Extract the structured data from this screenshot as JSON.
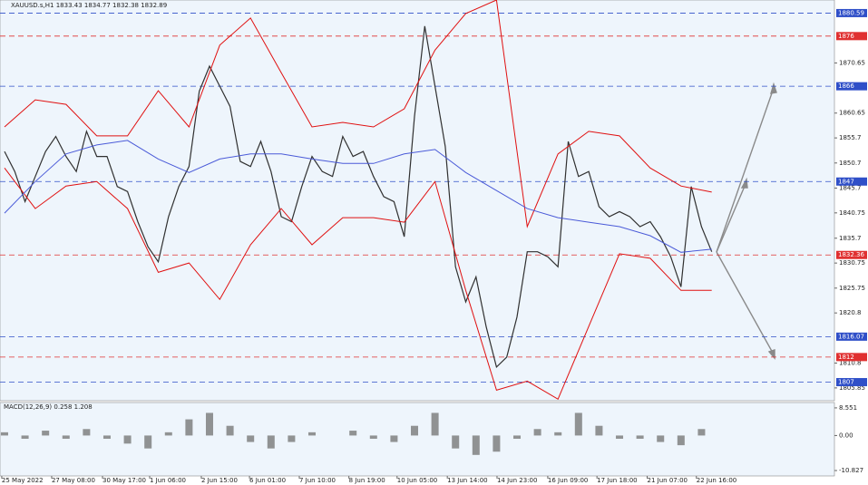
{
  "chart_data": [
    {
      "type": "line",
      "title": "XAUUSD.s,H1  1833.43 1834.77 1832.38 1832.89",
      "xlim": [
        -0.44,
        80.97
      ],
      "ylim": [
        1803.3,
        1883.2
      ],
      "yticks": [
        1870.65,
        1860.65,
        1855.7,
        1850.7,
        1845.7,
        1840.75,
        1835.7,
        1830.75,
        1825.75,
        1820.8,
        1810.8,
        1805.85
      ],
      "levels": [
        {
          "value": 1880.59,
          "color": "#2f4fc8"
        },
        {
          "value": 1876.0,
          "color": "#e03030"
        },
        {
          "value": 1866.0,
          "color": "#2f4fc8"
        },
        {
          "value": 1847.0,
          "color": "#2f4fc8"
        },
        {
          "value": 1832.36,
          "color": "#e03030"
        },
        {
          "value": 1816.07,
          "color": "#2f4fc8"
        },
        {
          "value": 1812.0,
          "color": "#e03030"
        },
        {
          "value": 1807.0,
          "color": "#2f4fc8"
        }
      ],
      "series": [
        {
          "color": "#303030",
          "x": [
            0,
            1,
            2,
            3,
            4,
            5,
            6,
            7,
            8,
            9,
            10,
            11,
            12,
            13,
            14,
            15,
            16,
            17,
            18,
            19,
            20,
            21,
            22,
            23,
            24,
            25,
            26,
            27,
            28,
            29,
            30,
            31,
            32,
            33,
            34,
            35,
            36,
            37,
            38,
            39,
            40,
            41,
            42,
            43,
            44,
            45,
            46,
            47,
            48,
            49,
            50,
            51,
            52,
            53,
            54,
            55,
            56,
            57,
            58,
            59,
            60,
            61,
            62,
            63,
            64,
            65,
            66,
            67,
            68,
            69
          ],
          "values": [
            1853,
            1849,
            1843,
            1848,
            1853,
            1856,
            1852,
            1849,
            1857,
            1852,
            1852,
            1846,
            1845,
            1839,
            1834,
            1831,
            1840,
            1846,
            1850,
            1865,
            1870,
            1866,
            1862,
            1851,
            1850,
            1855,
            1849,
            1840,
            1839,
            1846,
            1852,
            1849,
            1848,
            1856,
            1852,
            1853,
            1848,
            1844,
            1843,
            1836,
            1860,
            1878,
            1866,
            1854,
            1830,
            1823,
            1828,
            1818,
            1810,
            1812,
            1820,
            1833,
            1833,
            1832,
            1830,
            1855,
            1848,
            1849,
            1842,
            1840,
            1841,
            1840,
            1838,
            1839,
            1836,
            1832,
            1826,
            1846,
            1838,
            1833
          ]
        },
        {
          "color": "#e01010",
          "x": [
            0,
            3,
            6,
            9,
            12,
            15,
            18,
            21,
            24,
            27,
            30,
            33,
            36,
            39,
            42,
            45,
            48,
            51,
            54,
            57,
            60,
            63,
            66,
            69
          ],
          "values": [
            1857.9,
            1863.3,
            1862.4,
            1856.1,
            1856.1,
            1865.1,
            1857.9,
            1874.2,
            1879.6,
            1868.7,
            1857.9,
            1858.8,
            1857.9,
            1861.5,
            1873.2,
            1880.5,
            1883.2,
            1838.0,
            1852.5,
            1857.0,
            1856.1,
            1849.7,
            1846.1,
            1844.9
          ]
        },
        {
          "color": "#e01010",
          "x": [
            0,
            3,
            6,
            9,
            12,
            15,
            18,
            21,
            24,
            27,
            30,
            33,
            36,
            39,
            42,
            45,
            48,
            51,
            54,
            57,
            60,
            63,
            66,
            69
          ],
          "values": [
            1849.7,
            1841.6,
            1846.1,
            1847.0,
            1841.6,
            1828.9,
            1830.75,
            1823.5,
            1834.4,
            1841.6,
            1834.4,
            1839.8,
            1839.8,
            1838.9,
            1847.0,
            1825.3,
            1805.4,
            1807.2,
            1803.6,
            1818.1,
            1832.6,
            1831.7,
            1825.3,
            1825.3
          ]
        },
        {
          "color": "#4a5ad8",
          "x": [
            0,
            3,
            6,
            9,
            12,
            15,
            18,
            21,
            24,
            27,
            30,
            33,
            36,
            39,
            42,
            45,
            48,
            51,
            54,
            57,
            60,
            63,
            66,
            69
          ],
          "values": [
            1840.7,
            1847.0,
            1852.5,
            1854.3,
            1855.2,
            1851.5,
            1848.8,
            1851.5,
            1852.5,
            1852.5,
            1851.5,
            1850.6,
            1850.6,
            1852.5,
            1853.4,
            1848.8,
            1845.2,
            1841.6,
            1839.8,
            1838.9,
            1838.0,
            1836.2,
            1832.9,
            1833.5
          ]
        }
      ]
    },
    {
      "type": "bar",
      "title": "MACD(12,26,9) 0.258 1.208",
      "color": "#707070",
      "xlim": [
        -0.44,
        80.97
      ],
      "ylim": [
        -12.5,
        10.21
      ],
      "yticks": [
        8.551,
        {
          "value": 0,
          "label": "0.00"
        },
        -10.827
      ],
      "x": [
        0,
        2,
        4,
        6,
        8,
        10,
        12,
        14,
        16,
        18,
        20,
        22,
        24,
        26,
        28,
        30,
        32,
        34,
        36,
        38,
        40,
        42,
        44,
        46,
        48,
        50,
        52,
        54,
        56,
        58,
        60,
        62,
        64,
        66,
        68
      ],
      "values": [
        1,
        -1,
        1.5,
        -1,
        2,
        -1,
        -2.5,
        -4,
        1,
        5,
        7,
        3,
        -2,
        -4,
        -2,
        1,
        0,
        1.5,
        -1,
        -2,
        3,
        7,
        -4,
        -6,
        -5,
        -1,
        2,
        1,
        7,
        3,
        -1,
        -1,
        -2,
        -3,
        2
      ],
      "xticks": [
        {
          "value": -0.27,
          "label": "25 May 2022"
        },
        {
          "value": 4.6,
          "label": "27 May 08:00"
        },
        {
          "value": 9.56,
          "label": "30 May 17:00"
        },
        {
          "value": 14.16,
          "label": "1 Jun 06:00"
        },
        {
          "value": 19.2,
          "label": "2 Jun 15:00"
        },
        {
          "value": 23.9,
          "label": "6 Jun 01:00"
        },
        {
          "value": 28.76,
          "label": "7 Jun 10:00"
        },
        {
          "value": 33.6,
          "label": "8 Jun 19:00"
        },
        {
          "value": 38.3,
          "label": "10 Jun 05:00"
        },
        {
          "value": 43.2,
          "label": "13 Jun 14:00"
        },
        {
          "value": 48.05,
          "label": "14 Jun 23:00"
        },
        {
          "value": 53.0,
          "label": "16 Jun 09:00"
        },
        {
          "value": 57.8,
          "label": "17 Jun 18:00"
        },
        {
          "value": 62.7,
          "label": "21 Jun 07:00"
        },
        {
          "value": 67.5,
          "label": "22 Jun 16:00"
        }
      ]
    }
  ]
}
